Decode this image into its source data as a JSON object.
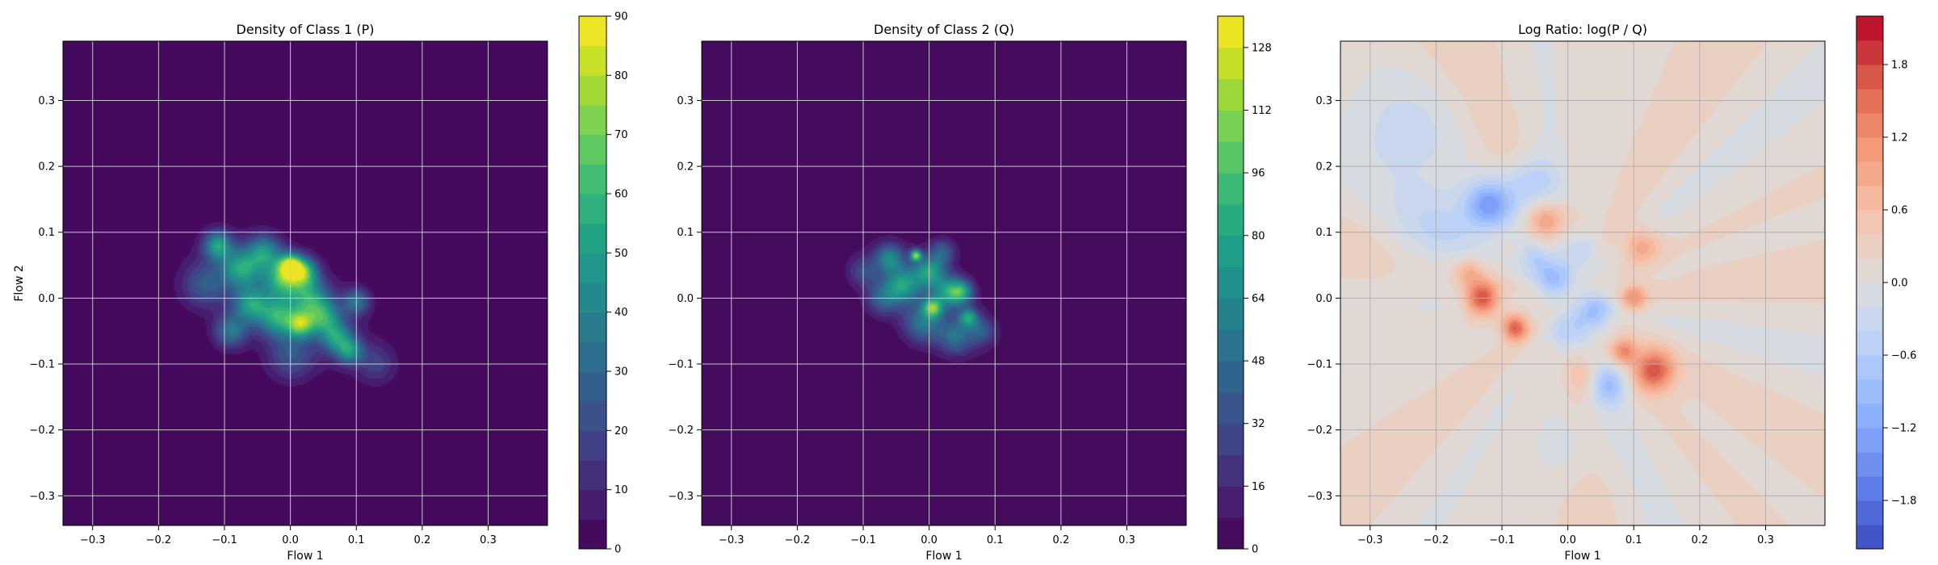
{
  "chart_data": [
    {
      "type": "heatmap",
      "title": "Density of Class 1 (P)",
      "xlabel": "Flow 1",
      "ylabel": "Flow 2",
      "xlim": [
        -0.345,
        0.39
      ],
      "ylim": [
        -0.345,
        0.39
      ],
      "xticks": [
        -0.3,
        -0.2,
        -0.1,
        0.0,
        0.1,
        0.2,
        0.3
      ],
      "xtick_labels": [
        "−0.3",
        "−0.2",
        "−0.1",
        "0.0",
        "0.1",
        "0.2",
        "0.3"
      ],
      "yticks": [
        -0.3,
        -0.2,
        -0.1,
        0.0,
        0.1,
        0.2,
        0.3
      ],
      "ytick_labels": [
        "−0.3",
        "−0.2",
        "−0.1",
        "0.0",
        "0.1",
        "0.2",
        "0.3"
      ],
      "grid": true,
      "colormap": "viridis",
      "colorbar": {
        "min": 0,
        "max": 90,
        "levels": 18,
        "ticks": [
          0,
          10,
          20,
          30,
          40,
          50,
          60,
          70,
          80,
          90
        ],
        "tick_labels": [
          "0",
          "10",
          "20",
          "30",
          "40",
          "50",
          "60",
          "70",
          "80",
          "90"
        ]
      },
      "blobs": [
        {
          "x": -0.11,
          "y": 0.08,
          "amp": 48,
          "sx": 0.015,
          "sy": 0.015
        },
        {
          "x": -0.075,
          "y": 0.045,
          "amp": 45,
          "sx": 0.02,
          "sy": 0.02
        },
        {
          "x": -0.04,
          "y": 0.07,
          "amp": 40,
          "sx": 0.018,
          "sy": 0.018
        },
        {
          "x": -0.01,
          "y": 0.03,
          "amp": 50,
          "sx": 0.02,
          "sy": 0.02
        },
        {
          "x": 0.0,
          "y": 0.05,
          "amp": 58,
          "sx": 0.012,
          "sy": 0.012
        },
        {
          "x": 0.02,
          "y": 0.04,
          "amp": 52,
          "sx": 0.015,
          "sy": 0.015
        },
        {
          "x": -0.06,
          "y": -0.01,
          "amp": 42,
          "sx": 0.018,
          "sy": 0.018
        },
        {
          "x": -0.02,
          "y": -0.03,
          "amp": 45,
          "sx": 0.02,
          "sy": 0.02
        },
        {
          "x": 0.015,
          "y": -0.04,
          "amp": 52,
          "sx": 0.014,
          "sy": 0.014
        },
        {
          "x": 0.05,
          "y": -0.03,
          "amp": 40,
          "sx": 0.018,
          "sy": 0.018
        },
        {
          "x": 0.07,
          "y": -0.06,
          "amp": 38,
          "sx": 0.016,
          "sy": 0.016
        },
        {
          "x": 0.09,
          "y": -0.08,
          "amp": 40,
          "sx": 0.014,
          "sy": 0.014
        },
        {
          "x": 0.1,
          "y": -0.005,
          "amp": 32,
          "sx": 0.014,
          "sy": 0.014
        },
        {
          "x": -0.09,
          "y": -0.05,
          "amp": 35,
          "sx": 0.018,
          "sy": 0.018
        },
        {
          "x": 0.03,
          "y": 0.0,
          "amp": 38,
          "sx": 0.02,
          "sy": 0.02
        },
        {
          "x": -0.13,
          "y": 0.02,
          "amp": 25,
          "sx": 0.025,
          "sy": 0.025
        },
        {
          "x": 0.0,
          "y": -0.09,
          "amp": 22,
          "sx": 0.025,
          "sy": 0.025
        },
        {
          "x": 0.13,
          "y": -0.1,
          "amp": 16,
          "sx": 0.02,
          "sy": 0.02
        },
        {
          "x": 0.0,
          "y": -0.005,
          "amp": 16,
          "sx": 0.085,
          "sy": 0.04,
          "rot": -35
        }
      ]
    },
    {
      "type": "heatmap",
      "title": "Density of Class 2 (Q)",
      "xlabel": "Flow 1",
      "ylabel": "",
      "xlim": [
        -0.345,
        0.39
      ],
      "ylim": [
        -0.345,
        0.39
      ],
      "xticks": [
        -0.3,
        -0.2,
        -0.1,
        0.0,
        0.1,
        0.2,
        0.3
      ],
      "xtick_labels": [
        "−0.3",
        "−0.2",
        "−0.1",
        "0.0",
        "0.1",
        "0.2",
        "0.3"
      ],
      "yticks": [
        -0.3,
        -0.2,
        -0.1,
        0.0,
        0.1,
        0.2,
        0.3
      ],
      "ytick_labels": [
        "−0.3",
        "−0.2",
        "−0.1",
        "0.0",
        "0.1",
        "0.2",
        "0.3"
      ],
      "grid": true,
      "colormap": "viridis",
      "colorbar": {
        "min": 0,
        "max": 136,
        "levels": 17,
        "ticks": [
          0,
          16,
          32,
          48,
          64,
          80,
          96,
          112,
          128
        ],
        "tick_labels": [
          "0",
          "16",
          "32",
          "48",
          "64",
          "80",
          "96",
          "112",
          "128"
        ]
      },
      "blobs": [
        {
          "x": -0.02,
          "y": 0.065,
          "amp": 95,
          "sx": 0.006,
          "sy": 0.006
        },
        {
          "x": -0.06,
          "y": 0.06,
          "amp": 55,
          "sx": 0.015,
          "sy": 0.015
        },
        {
          "x": -0.04,
          "y": 0.02,
          "amp": 60,
          "sx": 0.018,
          "sy": 0.018
        },
        {
          "x": 0.0,
          "y": 0.04,
          "amp": 65,
          "sx": 0.016,
          "sy": 0.016
        },
        {
          "x": 0.005,
          "y": -0.015,
          "amp": 80,
          "sx": 0.01,
          "sy": 0.01
        },
        {
          "x": 0.03,
          "y": 0.01,
          "amp": 62,
          "sx": 0.016,
          "sy": 0.016
        },
        {
          "x": 0.05,
          "y": 0.01,
          "amp": 60,
          "sx": 0.012,
          "sy": 0.012
        },
        {
          "x": 0.06,
          "y": -0.03,
          "amp": 64,
          "sx": 0.01,
          "sy": 0.01
        },
        {
          "x": -0.01,
          "y": -0.04,
          "amp": 45,
          "sx": 0.02,
          "sy": 0.02
        },
        {
          "x": 0.04,
          "y": -0.06,
          "amp": 40,
          "sx": 0.018,
          "sy": 0.018
        },
        {
          "x": -0.07,
          "y": 0.0,
          "amp": 40,
          "sx": 0.018,
          "sy": 0.018
        },
        {
          "x": 0.08,
          "y": -0.05,
          "amp": 32,
          "sx": 0.014,
          "sy": 0.014
        },
        {
          "x": -0.1,
          "y": 0.04,
          "amp": 28,
          "sx": 0.016,
          "sy": 0.016
        },
        {
          "x": 0.02,
          "y": 0.07,
          "amp": 38,
          "sx": 0.014,
          "sy": 0.014
        },
        {
          "x": 0.0,
          "y": 0.0,
          "amp": 20,
          "sx": 0.075,
          "sy": 0.035,
          "rot": -40
        }
      ]
    },
    {
      "type": "heatmap",
      "title": "Log Ratio: log(P / Q)",
      "xlabel": "Flow 1",
      "ylabel": "",
      "xlim": [
        -0.345,
        0.39
      ],
      "ylim": [
        -0.345,
        0.39
      ],
      "xticks": [
        -0.3,
        -0.2,
        -0.1,
        0.0,
        0.1,
        0.2,
        0.3
      ],
      "xtick_labels": [
        "−0.3",
        "−0.2",
        "−0.1",
        "0.0",
        "0.1",
        "0.2",
        "0.3"
      ],
      "yticks": [
        -0.3,
        -0.2,
        -0.1,
        0.0,
        0.1,
        0.2,
        0.3
      ],
      "ytick_labels": [
        "−0.3",
        "−0.2",
        "−0.1",
        "0.0",
        "0.1",
        "0.2",
        "0.3"
      ],
      "grid": true,
      "colormap": "coolwarm",
      "colorbar": {
        "min": -2.2,
        "max": 2.2,
        "levels": 22,
        "ticks": [
          -1.8,
          -1.2,
          -0.6,
          0.0,
          0.6,
          1.2,
          1.8
        ],
        "tick_labels": [
          "−1.8",
          "−1.2",
          "−0.6",
          "0.0",
          "0.6",
          "1.2",
          "1.8"
        ]
      },
      "background": 0.15,
      "bumps": [
        {
          "x": -0.13,
          "y": 0.0,
          "amp": 1.7,
          "s": 0.018
        },
        {
          "x": -0.08,
          "y": -0.045,
          "amp": 1.5,
          "s": 0.014
        },
        {
          "x": 0.13,
          "y": -0.11,
          "amp": 1.6,
          "s": 0.022
        },
        {
          "x": 0.1,
          "y": 0.0,
          "amp": 1.0,
          "s": 0.014
        },
        {
          "x": 0.085,
          "y": -0.08,
          "amp": 1.1,
          "s": 0.014
        },
        {
          "x": -0.03,
          "y": 0.12,
          "amp": 0.9,
          "s": 0.02
        },
        {
          "x": 0.11,
          "y": 0.08,
          "amp": 0.8,
          "s": 0.02
        },
        {
          "x": -0.15,
          "y": 0.04,
          "amp": 0.6,
          "s": 0.015
        },
        {
          "x": 0.03,
          "y": -0.12,
          "amp": 0.5,
          "s": 0.02
        },
        {
          "x": -0.12,
          "y": 0.14,
          "amp": -1.3,
          "s": 0.025
        },
        {
          "x": -0.06,
          "y": 0.17,
          "amp": -0.8,
          "s": 0.03
        },
        {
          "x": -0.02,
          "y": 0.03,
          "amp": -1.0,
          "s": 0.02
        },
        {
          "x": 0.04,
          "y": -0.02,
          "amp": -1.0,
          "s": 0.02
        },
        {
          "x": 0.06,
          "y": -0.13,
          "amp": -1.0,
          "s": 0.022
        },
        {
          "x": 0.0,
          "y": -0.05,
          "amp": -0.7,
          "s": 0.02
        },
        {
          "x": -0.05,
          "y": 0.06,
          "amp": -0.6,
          "s": 0.02
        },
        {
          "x": 0.02,
          "y": 0.07,
          "amp": -0.5,
          "s": 0.02
        },
        {
          "x": -0.2,
          "y": 0.1,
          "amp": -0.5,
          "s": 0.05
        },
        {
          "x": -0.25,
          "y": 0.25,
          "amp": -0.4,
          "s": 0.06
        },
        {
          "x": 0.0,
          "y": -0.22,
          "amp": -0.3,
          "s": 0.04
        }
      ]
    }
  ]
}
